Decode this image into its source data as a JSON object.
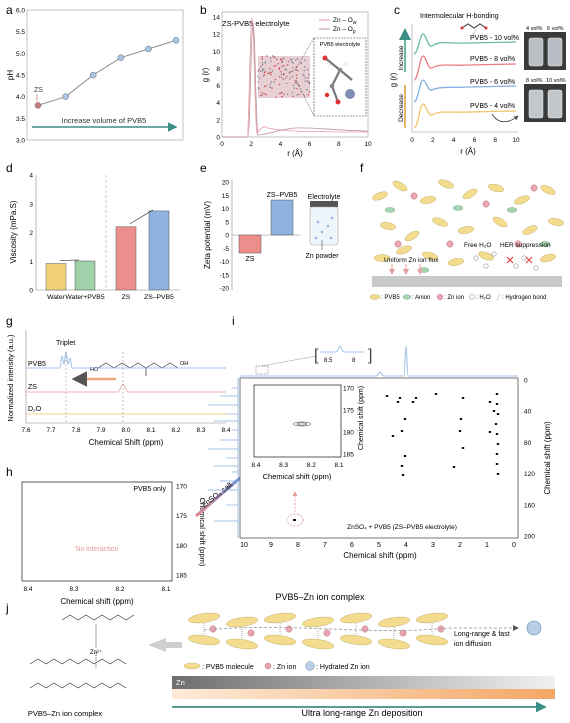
{
  "panel_letters": [
    "a",
    "b",
    "c",
    "d",
    "e",
    "f",
    "g",
    "h",
    "i",
    "j"
  ],
  "a": {
    "ylabel": "pH",
    "yticks": [
      "3.0",
      "3.5",
      "4.0",
      "4.5",
      "5.0",
      "5.5",
      "6.0"
    ],
    "point_label": "ZS",
    "arrow_text": "Increase volume of PVB5",
    "colors": {
      "line": "#8a8a8a",
      "marker": "#a9c6e6",
      "first": "#c97b7b",
      "arrow": "#3b8f86"
    }
  },
  "b": {
    "title": "ZS-PVB5 electrolyte",
    "xlabel": "r (Å)",
    "ylabel": "g (r)",
    "xticks": [
      "0",
      "2",
      "4",
      "6",
      "8",
      "10"
    ],
    "yticks": [
      "0",
      "2",
      "4",
      "6",
      "8",
      "10",
      "12",
      "14"
    ],
    "legend": [
      "Zn – O",
      "Zn – O"
    ],
    "legend_sub": [
      "w",
      "p"
    ],
    "inset_label": "PVB5 electrolyte"
  },
  "c": {
    "header": "Intermolecular H-bonding",
    "xlabel": "r (Å)",
    "ylabel": "g (r)",
    "xticks": [
      "0",
      "2",
      "4",
      "6",
      "8",
      "10"
    ],
    "increase": "Increase",
    "decrease": "Decrease",
    "series": [
      "PVB5 - 10 vol%",
      "PVB5 - 8 vol%",
      "PVB5 - 6 vol%",
      "PVB5 - 4 vol%"
    ],
    "vial_labels_top": [
      "4 vol%",
      "6 vol%"
    ],
    "vial_labels_bottom": [
      "8 vol%",
      "10 vol%"
    ]
  },
  "d": {
    "ylabel": "Viscosity (mPa.S)",
    "yticks": [
      "0",
      "1",
      "2",
      "3",
      "4"
    ],
    "categories": [
      "Water",
      "Water+PVB5",
      "ZS",
      "ZS–PVB5"
    ]
  },
  "e": {
    "ylabel": "Zeta potential (mV)",
    "yticks": [
      "-20",
      "-15",
      "-10",
      "-5",
      "0",
      "5",
      "10",
      "15",
      "20"
    ],
    "categories": [
      "ZS",
      "ZS–PVB5"
    ],
    "electrolyte_label": "Electrolyte",
    "powder_label": "Zn powder"
  },
  "f": {
    "flux_label": "Uniform Zn ion flux",
    "free_water": "Free H₂O",
    "her": "HER suppression",
    "legend": [
      ": PVB5",
      ": Anion",
      ": Zn ion",
      ": H₂O",
      ": Hydrogen bond"
    ]
  },
  "g": {
    "ylabel": "Normalized intensity (a.u.)",
    "xlabel": "Chemical Shift (ppm)",
    "xticks": [
      "7.6",
      "7.7",
      "7.8",
      "7.9",
      "8.0",
      "8.1",
      "8.2",
      "8.3",
      "8.4"
    ],
    "triplet": "Triplet",
    "traces": [
      "PVB5",
      "ZS",
      "D₂O"
    ]
  },
  "h": {
    "title": "PVB5 only",
    "no_interaction": "No interaction",
    "xlabel": "Chemical shift (ppm)",
    "ylabel": "Chemical shift (ppm)",
    "xticks": [
      "8.4",
      "8.3",
      "8.2",
      "8.1"
    ],
    "yticks": [
      "170",
      "175",
      "180",
      "185"
    ]
  },
  "i": {
    "salt": "ZnSO₄ salt",
    "xlabel": "Chemical shift (ppm)",
    "ylabel": "Chemical shift (ppm)",
    "xticks": [
      "10",
      "9",
      "8",
      "7",
      "6",
      "5",
      "4",
      "3",
      "2",
      "1",
      "0"
    ],
    "yticks": [
      "0",
      "40",
      "80",
      "120",
      "160",
      "200"
    ],
    "inset_xticks": [
      "8.4",
      "8.3",
      "8.2",
      "8.1"
    ],
    "inset_yticks": [
      "170",
      "175",
      "180",
      "185"
    ],
    "inset_xlabel": "Chemical shift (ppm)",
    "inset_ylabel": "Chemical shift (ppm)",
    "zoom_ticks": [
      "8.5",
      "8"
    ],
    "caption": "ZnSO₄ + PVB5 (ZS–PVB5 electrolyte)"
  },
  "j": {
    "title": "PVB5–Zn ion complex",
    "zn_label": "Zn²⁺",
    "complex_caption": "PVB5–Zn ion complex",
    "diffusion": [
      "Long-range & fast",
      "ion diffusion"
    ],
    "legend": [
      ": PVB5 molecule",
      ": Zn ion",
      ": Hydrated Zn ion"
    ],
    "bar_label": "Zn",
    "arrow_text": "Ultra long-range Zn deposition"
  },
  "chart_data": [
    {
      "type": "line",
      "panel": "a",
      "x": [
        1,
        2,
        3,
        4,
        5,
        6
      ],
      "y": [
        3.8,
        4.0,
        4.5,
        4.9,
        5.1,
        5.3
      ],
      "ylabel": "pH",
      "ylim": [
        3.0,
        6.0
      ]
    },
    {
      "type": "bar",
      "panel": "d",
      "categories": [
        "Water",
        "Water+PVB5",
        "ZS",
        "ZS–PVB5"
      ],
      "values": [
        0.92,
        1.01,
        2.2,
        2.75
      ],
      "colors": [
        "#f1d27a",
        "#9fd1aa",
        "#ec8f8c",
        "#8fb2e0"
      ],
      "ylabel": "Viscosity (mPa.S)",
      "ylim": [
        0,
        4
      ]
    },
    {
      "type": "bar",
      "panel": "e",
      "categories": [
        "ZS",
        "ZS–PVB5"
      ],
      "values": [
        -6.8,
        13.2
      ],
      "colors": [
        "#ec8f8c",
        "#8fb2e0"
      ],
      "ylabel": "Zeta potential (mV)",
      "ylim": [
        -20,
        20
      ]
    }
  ]
}
